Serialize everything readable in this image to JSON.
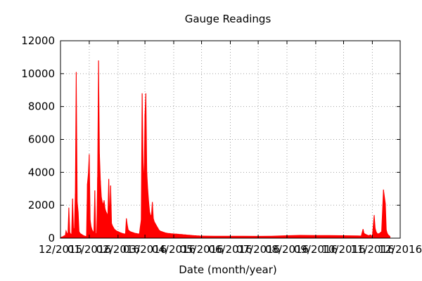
{
  "chart_data": {
    "type": "area",
    "title": "Gauge Readings",
    "xlabel": "Date (month/year)",
    "ylabel": "",
    "ylim": [
      0,
      12000
    ],
    "yticks": [
      0,
      2000,
      4000,
      6000,
      8000,
      10000,
      12000
    ],
    "xlim": [
      "2015-12-01",
      "2016-12-01"
    ],
    "xticks": [
      {
        "date": "2015-12-01",
        "label": "12/2015"
      },
      {
        "date": "2016-01-01",
        "label": "01/2016"
      },
      {
        "date": "2016-02-01",
        "label": "02/2016"
      },
      {
        "date": "2016-03-01",
        "label": "03/2016"
      },
      {
        "date": "2016-04-01",
        "label": "04/2016"
      },
      {
        "date": "2016-05-01",
        "label": "05/2016"
      },
      {
        "date": "2016-06-01",
        "label": "06/2016"
      },
      {
        "date": "2016-07-01",
        "label": "07/2016"
      },
      {
        "date": "2016-08-01",
        "label": "08/2016"
      },
      {
        "date": "2016-09-01",
        "label": "09/2016"
      },
      {
        "date": "2016-10-01",
        "label": "10/2016"
      },
      {
        "date": "2016-11-01",
        "label": "11/2016"
      },
      {
        "date": "2016-12-01",
        "label": "12/2016"
      }
    ],
    "grid": true,
    "color": "#ff0000",
    "x": [
      "2015-12-01",
      "2015-12-02",
      "2015-12-03",
      "2015-12-04",
      "2015-12-05",
      "2015-12-06",
      "2015-12-07",
      "2015-12-08",
      "2015-12-09",
      "2015-12-10",
      "2015-12-11",
      "2015-12-12",
      "2015-12-13",
      "2015-12-14",
      "2015-12-15",
      "2015-12-16",
      "2015-12-17",
      "2015-12-18",
      "2015-12-19",
      "2015-12-20",
      "2015-12-21",
      "2015-12-22",
      "2015-12-23",
      "2015-12-24",
      "2015-12-25",
      "2015-12-26",
      "2015-12-27",
      "2015-12-28",
      "2015-12-29",
      "2015-12-30",
      "2015-12-31",
      "2016-01-01",
      "2016-01-02",
      "2016-01-03",
      "2016-01-04",
      "2016-01-05",
      "2016-01-06",
      "2016-01-07",
      "2016-01-08",
      "2016-01-09",
      "2016-01-10",
      "2016-01-11",
      "2016-01-12",
      "2016-01-13",
      "2016-01-14",
      "2016-01-15",
      "2016-01-16",
      "2016-01-17",
      "2016-01-18",
      "2016-01-19",
      "2016-01-20",
      "2016-01-21",
      "2016-01-22",
      "2016-01-23",
      "2016-01-24",
      "2016-01-25",
      "2016-01-26",
      "2016-01-27",
      "2016-01-28",
      "2016-01-29",
      "2016-01-30",
      "2016-01-31",
      "2016-02-01",
      "2016-02-02",
      "2016-02-03",
      "2016-02-04",
      "2016-02-05",
      "2016-02-06",
      "2016-02-07",
      "2016-02-08",
      "2016-02-09",
      "2016-02-10",
      "2016-02-11",
      "2016-02-12",
      "2016-02-13",
      "2016-02-14",
      "2016-02-15",
      "2016-02-16",
      "2016-02-17",
      "2016-02-18",
      "2016-02-19",
      "2016-02-20",
      "2016-02-21",
      "2016-02-22",
      "2016-02-23",
      "2016-02-24",
      "2016-02-25",
      "2016-02-26",
      "2016-02-27",
      "2016-02-28",
      "2016-02-29",
      "2016-03-01",
      "2016-03-02",
      "2016-03-03",
      "2016-03-04",
      "2016-03-05",
      "2016-03-06",
      "2016-03-07",
      "2016-03-08",
      "2016-03-09",
      "2016-03-10",
      "2016-03-11",
      "2016-03-12",
      "2016-03-13",
      "2016-03-14",
      "2016-03-15",
      "2016-03-16",
      "2016-03-17",
      "2016-03-18",
      "2016-03-19",
      "2016-03-20",
      "2016-03-21",
      "2016-03-22",
      "2016-03-23",
      "2016-03-24",
      "2016-03-25",
      "2016-03-26",
      "2016-03-27",
      "2016-03-28",
      "2016-03-29",
      "2016-03-30",
      "2016-03-31",
      "2016-04-01",
      "2016-04-02",
      "2016-04-03",
      "2016-04-04",
      "2016-04-05",
      "2016-04-06",
      "2016-04-07",
      "2016-04-08",
      "2016-04-09",
      "2016-04-10",
      "2016-04-11",
      "2016-04-12",
      "2016-04-13",
      "2016-04-14",
      "2016-04-15",
      "2016-04-16",
      "2016-04-17",
      "2016-04-18",
      "2016-04-19",
      "2016-04-20",
      "2016-04-21",
      "2016-04-22",
      "2016-04-23",
      "2016-04-24",
      "2016-04-25",
      "2016-04-26",
      "2016-04-27",
      "2016-04-28",
      "2016-04-29",
      "2016-04-30",
      "2016-05-15",
      "2016-06-01",
      "2016-06-15",
      "2016-07-01",
      "2016-07-15",
      "2016-08-01",
      "2016-08-15",
      "2016-09-01",
      "2016-09-15",
      "2016-10-01",
      "2016-10-15",
      "2016-10-20",
      "2016-10-22",
      "2016-10-23",
      "2016-10-24",
      "2016-10-26",
      "2016-10-28",
      "2016-10-30",
      "2016-11-01",
      "2016-11-03",
      "2016-11-04",
      "2016-11-05",
      "2016-11-06",
      "2016-11-07",
      "2016-11-09",
      "2016-11-10",
      "2016-11-11",
      "2016-11-13",
      "2016-11-15",
      "2016-11-16",
      "2016-11-17",
      "2016-11-18",
      "2016-11-19",
      "2016-11-20"
    ],
    "values": [
      0,
      60,
      80,
      100,
      150,
      120,
      450,
      300,
      250,
      1850,
      350,
      250,
      200,
      2400,
      500,
      600,
      2700,
      10100,
      2200,
      1600,
      400,
      300,
      250,
      220,
      180,
      150,
      130,
      110,
      100,
      3300,
      3900,
      5100,
      1100,
      700,
      500,
      400,
      350,
      2900,
      300,
      250,
      3700,
      10800,
      5100,
      3500,
      2500,
      2200,
      2000,
      2300,
      1800,
      1600,
      1500,
      1300,
      3600,
      1100,
      3200,
      900,
      750,
      650,
      550,
      500,
      450,
      420,
      400,
      370,
      340,
      320,
      300,
      280,
      270,
      260,
      250,
      1200,
      800,
      500,
      450,
      400,
      380,
      360,
      340,
      320,
      300,
      290,
      280,
      270,
      260,
      250,
      700,
      1100,
      8800,
      4600,
      3100,
      7500,
      8800,
      4000,
      3000,
      2200,
      1600,
      1400,
      1350,
      2200,
      1200,
      1000,
      900,
      800,
      700,
      600,
      500,
      450,
      420,
      400,
      380,
      360,
      340,
      320,
      310,
      300,
      290,
      280,
      280,
      270,
      270,
      260,
      260,
      250,
      250,
      250,
      240,
      240,
      230,
      230,
      220,
      220,
      210,
      210,
      200,
      200,
      190,
      190,
      180,
      180,
      170,
      170,
      160,
      160,
      150,
      150,
      150,
      140,
      140,
      140,
      130,
      130,
      120,
      120,
      115,
      110,
      120,
      150,
      170,
      160,
      160,
      150,
      140,
      130,
      550,
      300,
      250,
      200,
      150,
      200,
      100,
      1400,
      600,
      400,
      300,
      250,
      300,
      350,
      400,
      2950,
      2100,
      500,
      300,
      200,
      150,
      100
    ]
  }
}
